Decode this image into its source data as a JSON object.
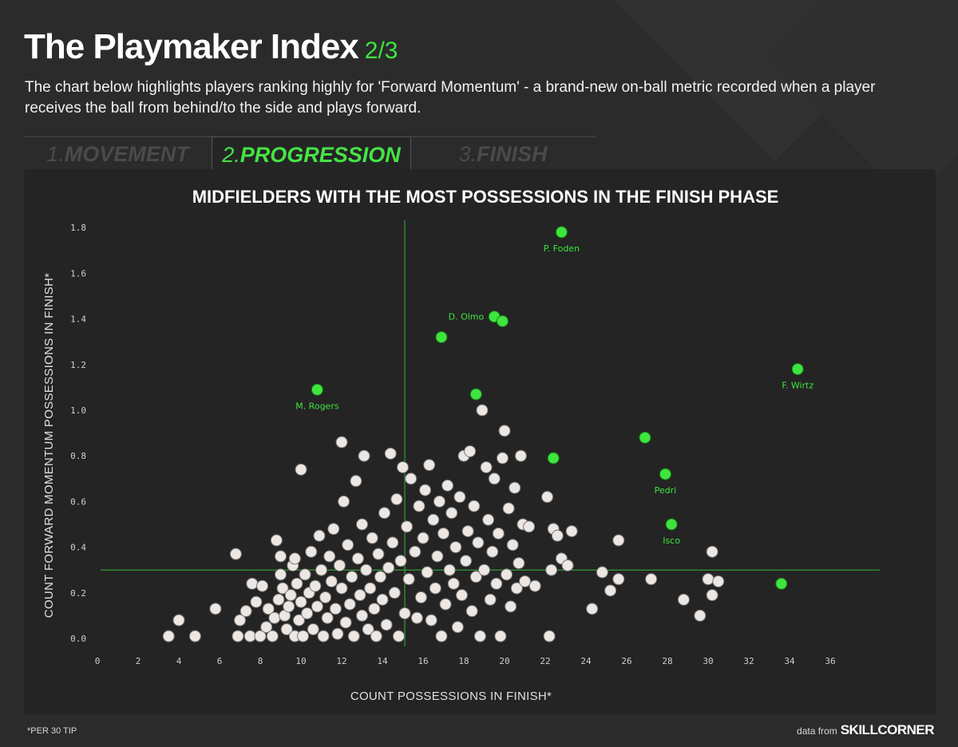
{
  "header": {
    "title": "The Playmaker Index",
    "page_indicator": "2/3",
    "description": "The chart below highlights players ranking highly for 'Forward Momentum' - a brand-new on-ball metric recorded when a player receives the ball from behind/to the side and plays forward."
  },
  "tabs": [
    {
      "num": "1.",
      "label": "MOVEMENT",
      "active": false
    },
    {
      "num": "2.",
      "label": "PROGRESSION",
      "active": true
    },
    {
      "num": "3.",
      "label": "FINISH",
      "active": false
    }
  ],
  "colors": {
    "background": "#2b2b2b",
    "panel": "#242424",
    "accent": "#3ee53e",
    "point_default": "#ede7e3",
    "point_stroke": "#777777"
  },
  "footer": {
    "footnote": "*PER 30 TIP",
    "credit_prefix": "data from",
    "credit_brand": "SKILLCORNER"
  },
  "chart_data": {
    "type": "scatter",
    "title": "MIDFIELDERS WITH THE MOST POSSESSIONS IN THE FINISH PHASE",
    "xlabel": "COUNT POSSESSIONS IN FINISH*",
    "ylabel": "COUNT FORWARD MOMENTUM POSSESSIONS IN FINISH*",
    "xlim": [
      0,
      37
    ],
    "ylim": [
      0,
      1.8
    ],
    "xticks": [
      0,
      2,
      4,
      6,
      8,
      10,
      12,
      14,
      16,
      18,
      20,
      22,
      24,
      26,
      28,
      30,
      32,
      34,
      36
    ],
    "yticks": [
      0.0,
      0.2,
      0.4,
      0.6,
      0.8,
      1.0,
      1.2,
      1.4,
      1.6,
      1.8
    ],
    "reference_lines": {
      "x": 15.1,
      "y": 0.3
    },
    "grid": false,
    "highlighted": [
      {
        "name": "P. Foden",
        "x": 22.8,
        "y": 1.78
      },
      {
        "name": "D. Olmo",
        "x": 19.5,
        "y": 1.41
      },
      {
        "name": "",
        "x": 19.9,
        "y": 1.39
      },
      {
        "name": "",
        "x": 16.9,
        "y": 1.32
      },
      {
        "name": "F. Wirtz",
        "x": 34.4,
        "y": 1.18
      },
      {
        "name": "M. Rogers",
        "x": 10.8,
        "y": 1.09
      },
      {
        "name": "",
        "x": 18.6,
        "y": 1.07
      },
      {
        "name": "",
        "x": 26.9,
        "y": 0.88
      },
      {
        "name": "",
        "x": 22.4,
        "y": 0.79
      },
      {
        "name": "Pedri",
        "x": 27.9,
        "y": 0.72
      },
      {
        "name": "Isco",
        "x": 28.2,
        "y": 0.5
      },
      {
        "name": "",
        "x": 33.6,
        "y": 0.24
      }
    ],
    "others": [
      [
        3.5,
        0.01
      ],
      [
        4.0,
        0.08
      ],
      [
        4.8,
        0.01
      ],
      [
        5.8,
        0.13
      ],
      [
        6.8,
        0.37
      ],
      [
        6.9,
        0.01
      ],
      [
        7.0,
        0.08
      ],
      [
        7.3,
        0.12
      ],
      [
        7.5,
        0.01
      ],
      [
        7.6,
        0.24
      ],
      [
        7.8,
        0.16
      ],
      [
        8.0,
        0.01
      ],
      [
        8.1,
        0.23
      ],
      [
        8.3,
        0.05
      ],
      [
        8.4,
        0.13
      ],
      [
        8.6,
        0.01
      ],
      [
        8.7,
        0.09
      ],
      [
        8.8,
        0.43
      ],
      [
        8.9,
        0.17
      ],
      [
        9.0,
        0.28
      ],
      [
        9.0,
        0.36
      ],
      [
        9.1,
        0.22
      ],
      [
        9.2,
        0.1
      ],
      [
        9.3,
        0.04
      ],
      [
        9.4,
        0.14
      ],
      [
        9.5,
        0.19
      ],
      [
        9.6,
        0.32
      ],
      [
        9.7,
        0.01
      ],
      [
        9.7,
        0.35
      ],
      [
        9.8,
        0.24
      ],
      [
        9.9,
        0.08
      ],
      [
        10.0,
        0.74
      ],
      [
        10.0,
        0.16
      ],
      [
        10.1,
        0.01
      ],
      [
        10.2,
        0.28
      ],
      [
        10.3,
        0.11
      ],
      [
        10.4,
        0.2
      ],
      [
        10.5,
        0.38
      ],
      [
        10.6,
        0.04
      ],
      [
        10.7,
        0.23
      ],
      [
        10.8,
        0.14
      ],
      [
        10.9,
        0.45
      ],
      [
        11.0,
        0.3
      ],
      [
        11.1,
        0.01
      ],
      [
        11.2,
        0.18
      ],
      [
        11.3,
        0.09
      ],
      [
        11.4,
        0.36
      ],
      [
        11.5,
        0.25
      ],
      [
        11.6,
        0.48
      ],
      [
        11.7,
        0.13
      ],
      [
        11.8,
        0.02
      ],
      [
        11.9,
        0.32
      ],
      [
        12.0,
        0.22
      ],
      [
        12.0,
        0.86
      ],
      [
        12.1,
        0.6
      ],
      [
        12.2,
        0.07
      ],
      [
        12.3,
        0.41
      ],
      [
        12.4,
        0.15
      ],
      [
        12.5,
        0.27
      ],
      [
        12.6,
        0.01
      ],
      [
        12.7,
        0.69
      ],
      [
        12.8,
        0.35
      ],
      [
        12.9,
        0.19
      ],
      [
        13.0,
        0.1
      ],
      [
        13.0,
        0.5
      ],
      [
        13.1,
        0.8
      ],
      [
        13.2,
        0.3
      ],
      [
        13.3,
        0.04
      ],
      [
        13.4,
        0.22
      ],
      [
        13.5,
        0.44
      ],
      [
        13.6,
        0.13
      ],
      [
        13.7,
        0.01
      ],
      [
        13.8,
        0.37
      ],
      [
        13.9,
        0.27
      ],
      [
        14.0,
        0.17
      ],
      [
        14.1,
        0.55
      ],
      [
        14.2,
        0.06
      ],
      [
        14.3,
        0.31
      ],
      [
        14.4,
        0.81
      ],
      [
        14.5,
        0.42
      ],
      [
        14.6,
        0.2
      ],
      [
        14.7,
        0.61
      ],
      [
        14.8,
        0.01
      ],
      [
        14.9,
        0.34
      ],
      [
        15.0,
        0.75
      ],
      [
        15.1,
        0.11
      ],
      [
        15.2,
        0.49
      ],
      [
        15.3,
        0.26
      ],
      [
        15.4,
        0.7
      ],
      [
        15.6,
        0.38
      ],
      [
        15.7,
        0.09
      ],
      [
        15.8,
        0.58
      ],
      [
        15.9,
        0.18
      ],
      [
        16.0,
        0.44
      ],
      [
        16.1,
        0.65
      ],
      [
        16.2,
        0.29
      ],
      [
        16.3,
        0.76
      ],
      [
        16.4,
        0.08
      ],
      [
        16.5,
        0.52
      ],
      [
        16.6,
        0.22
      ],
      [
        16.7,
        0.36
      ],
      [
        16.8,
        0.6
      ],
      [
        16.9,
        0.01
      ],
      [
        17.0,
        0.46
      ],
      [
        17.1,
        0.15
      ],
      [
        17.2,
        0.67
      ],
      [
        17.3,
        0.3
      ],
      [
        17.4,
        0.55
      ],
      [
        17.5,
        0.24
      ],
      [
        17.6,
        0.4
      ],
      [
        17.7,
        0.05
      ],
      [
        17.8,
        0.62
      ],
      [
        17.9,
        0.19
      ],
      [
        18.0,
        0.8
      ],
      [
        18.1,
        0.34
      ],
      [
        18.2,
        0.47
      ],
      [
        18.3,
        0.82
      ],
      [
        18.4,
        0.12
      ],
      [
        18.5,
        0.58
      ],
      [
        18.6,
        0.27
      ],
      [
        18.7,
        0.42
      ],
      [
        18.8,
        0.01
      ],
      [
        18.9,
        1.0
      ],
      [
        19.0,
        0.3
      ],
      [
        19.1,
        0.75
      ],
      [
        19.2,
        0.52
      ],
      [
        19.3,
        0.17
      ],
      [
        19.4,
        0.38
      ],
      [
        19.5,
        0.7
      ],
      [
        19.6,
        0.24
      ],
      [
        19.7,
        0.46
      ],
      [
        19.8,
        0.01
      ],
      [
        19.9,
        0.79
      ],
      [
        20.0,
        0.91
      ],
      [
        20.1,
        0.28
      ],
      [
        20.2,
        0.57
      ],
      [
        20.3,
        0.14
      ],
      [
        20.4,
        0.41
      ],
      [
        20.5,
        0.66
      ],
      [
        20.6,
        0.22
      ],
      [
        20.7,
        0.33
      ],
      [
        20.8,
        0.8
      ],
      [
        20.9,
        0.5
      ],
      [
        21.0,
        0.25
      ],
      [
        21.2,
        0.49
      ],
      [
        21.5,
        0.23
      ],
      [
        22.1,
        0.62
      ],
      [
        22.2,
        0.01
      ],
      [
        22.3,
        0.3
      ],
      [
        22.4,
        0.48
      ],
      [
        22.6,
        0.45
      ],
      [
        22.8,
        0.35
      ],
      [
        23.1,
        0.32
      ],
      [
        23.3,
        0.47
      ],
      [
        24.3,
        0.13
      ],
      [
        24.8,
        0.29
      ],
      [
        25.2,
        0.21
      ],
      [
        25.6,
        0.26
      ],
      [
        25.6,
        0.43
      ],
      [
        27.2,
        0.26
      ],
      [
        28.8,
        0.17
      ],
      [
        29.6,
        0.1
      ],
      [
        30.0,
        0.26
      ],
      [
        30.2,
        0.19
      ],
      [
        30.2,
        0.38
      ],
      [
        30.5,
        0.25
      ]
    ]
  }
}
